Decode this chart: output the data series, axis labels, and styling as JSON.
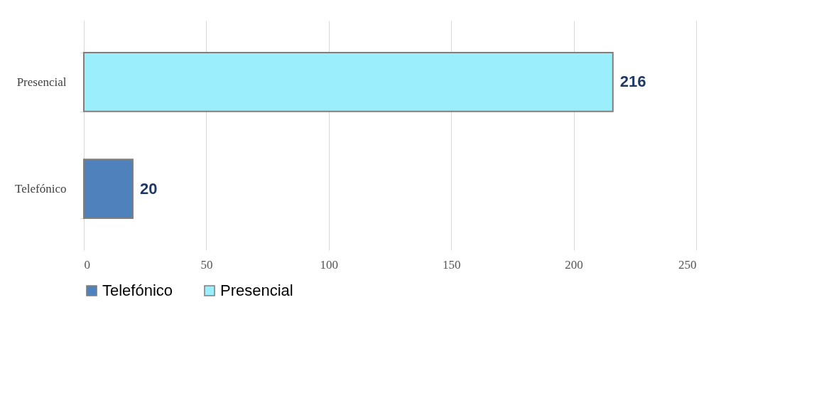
{
  "chart_data": {
    "type": "bar",
    "orientation": "horizontal",
    "categories": [
      "Presencial",
      "Telefónico"
    ],
    "series": [
      {
        "name": "Telefónico",
        "color": "#4f81bd",
        "values": [
          null,
          20
        ]
      },
      {
        "name": "Presencial",
        "color": "#9beefb",
        "values": [
          216,
          null
        ]
      }
    ],
    "xlim": [
      0,
      250
    ],
    "xticks": [
      0,
      50,
      100,
      150,
      200,
      250
    ],
    "grid": "x",
    "legend": "bottom",
    "data_labels": true
  }
}
